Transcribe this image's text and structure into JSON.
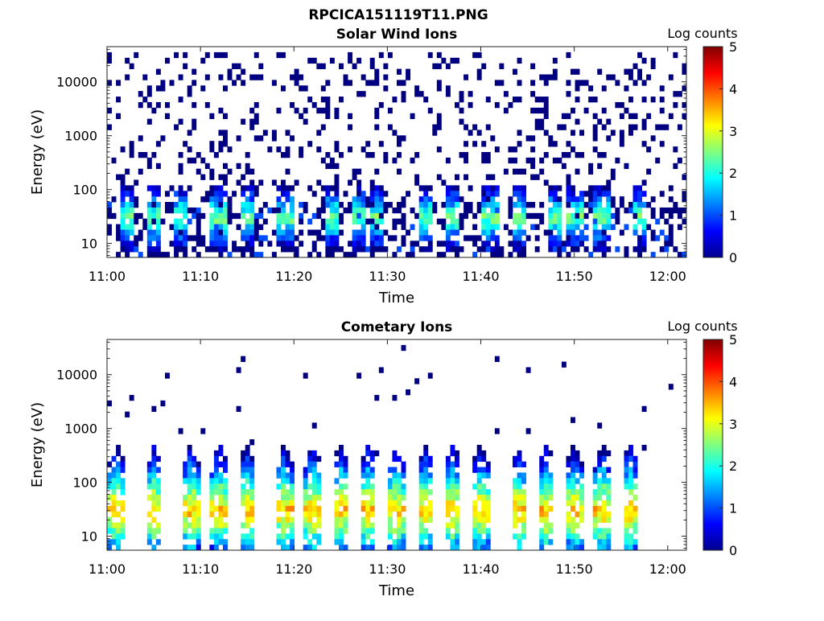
{
  "figure_title": "RPCICA151119T11.PNG",
  "chart_data": [
    {
      "type": "heatmap",
      "title": "Solar Wind Ions",
      "xlabel": "Time",
      "ylabel": "Energy (eV)",
      "x_ticks": [
        "11:00",
        "11:10",
        "11:20",
        "11:30",
        "11:40",
        "11:50",
        "12:00"
      ],
      "xlim": [
        "11:00",
        "12:02"
      ],
      "y_scale": "log",
      "y_ticks": [
        10,
        100,
        1000,
        10000
      ],
      "ylim": [
        5.5,
        45000
      ],
      "colorbar": {
        "label": "Log counts",
        "range": [
          0,
          5
        ],
        "ticks": [
          0,
          1,
          2,
          3,
          4,
          5
        ],
        "colormap": "jet"
      },
      "features": [
        {
          "kind": "background_scatter",
          "energy_range": [
            40,
            35000
          ],
          "log_counts": 0
        },
        {
          "kind": "low_energy_band",
          "energy_range": [
            6,
            60
          ],
          "log_counts_max": 3
        },
        {
          "kind": "bursts",
          "times": [
            "11:02",
            "11:05",
            "11:08",
            "11:12",
            "11:15",
            "11:19",
            "11:24",
            "11:27",
            "11:29",
            "11:34",
            "11:37",
            "11:41",
            "11:44",
            "11:48",
            "11:50",
            "11:53",
            "11:57"
          ],
          "energy": 30,
          "log_counts_max": 3
        }
      ]
    },
    {
      "type": "heatmap",
      "title": "Cometary Ions",
      "xlabel": "Time",
      "ylabel": "Energy (eV)",
      "x_ticks": [
        "11:00",
        "11:10",
        "11:20",
        "11:30",
        "11:40",
        "11:50",
        "12:00"
      ],
      "xlim": [
        "11:00",
        "12:02"
      ],
      "y_scale": "log",
      "y_ticks": [
        10,
        100,
        1000,
        10000
      ],
      "ylim": [
        5.5,
        45000
      ],
      "colorbar": {
        "label": "Log counts",
        "range": [
          0,
          5
        ],
        "ticks": [
          0,
          1,
          2,
          3,
          4,
          5
        ],
        "colormap": "jet"
      },
      "features": [
        {
          "kind": "sparse_points",
          "energy_range": [
            300,
            35000
          ],
          "log_counts": 0
        },
        {
          "kind": "bursts",
          "times": [
            "11:01",
            "11:05",
            "11:09",
            "11:12",
            "11:15",
            "11:19",
            "11:22",
            "11:25",
            "11:28",
            "11:31",
            "11:34",
            "11:37",
            "11:40",
            "11:44",
            "11:47",
            "11:50",
            "11:53",
            "11:56"
          ],
          "energy": 30,
          "log_counts_max": 4
        }
      ]
    }
  ]
}
